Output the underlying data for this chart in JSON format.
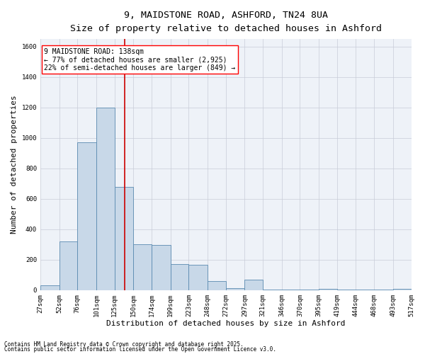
{
  "title_line1": "9, MAIDSTONE ROAD, ASHFORD, TN24 8UA",
  "title_line2": "Size of property relative to detached houses in Ashford",
  "xlabel": "Distribution of detached houses by size in Ashford",
  "ylabel": "Number of detached properties",
  "bar_left_edges": [
    27,
    52,
    76,
    101,
    125,
    150,
    174,
    199,
    223,
    248,
    272,
    297,
    321,
    346,
    370,
    395,
    419,
    444,
    468,
    493
  ],
  "bar_widths": [
    25,
    24,
    25,
    24,
    25,
    24,
    25,
    24,
    25,
    24,
    25,
    24,
    25,
    24,
    25,
    24,
    25,
    24,
    25,
    24
  ],
  "bar_heights": [
    30,
    320,
    970,
    1200,
    680,
    300,
    295,
    170,
    165,
    60,
    15,
    70,
    5,
    5,
    5,
    10,
    2,
    2,
    2,
    10
  ],
  "bar_color": "#c8d8e8",
  "bar_edge_color": "#5a8ab0",
  "vline_x": 138,
  "vline_color": "#cc0000",
  "ylim": [
    0,
    1650
  ],
  "yticks": [
    0,
    200,
    400,
    600,
    800,
    1000,
    1200,
    1400,
    1600
  ],
  "xlim": [
    27,
    517
  ],
  "xtick_labels": [
    "27sqm",
    "52sqm",
    "76sqm",
    "101sqm",
    "125sqm",
    "150sqm",
    "174sqm",
    "199sqm",
    "223sqm",
    "248sqm",
    "272sqm",
    "297sqm",
    "321sqm",
    "346sqm",
    "370sqm",
    "395sqm",
    "419sqm",
    "444sqm",
    "468sqm",
    "493sqm",
    "517sqm"
  ],
  "xtick_positions": [
    27,
    52,
    76,
    101,
    125,
    150,
    174,
    199,
    223,
    248,
    272,
    297,
    321,
    346,
    370,
    395,
    419,
    444,
    468,
    493,
    517
  ],
  "annotation_text": "9 MAIDSTONE ROAD: 138sqm\n← 77% of detached houses are smaller (2,925)\n22% of semi-detached houses are larger (849) →",
  "footnote_line1": "Contains HM Land Registry data © Crown copyright and database right 2025.",
  "footnote_line2": "Contains public sector information licensed under the Open Government Licence v3.0.",
  "bg_color": "#eef2f8",
  "grid_color": "#c8ccd8",
  "title_fontsize": 9.5,
  "subtitle_fontsize": 8.5,
  "axis_label_fontsize": 8,
  "tick_fontsize": 6.5,
  "annotation_fontsize": 7,
  "footnote_fontsize": 5.5
}
